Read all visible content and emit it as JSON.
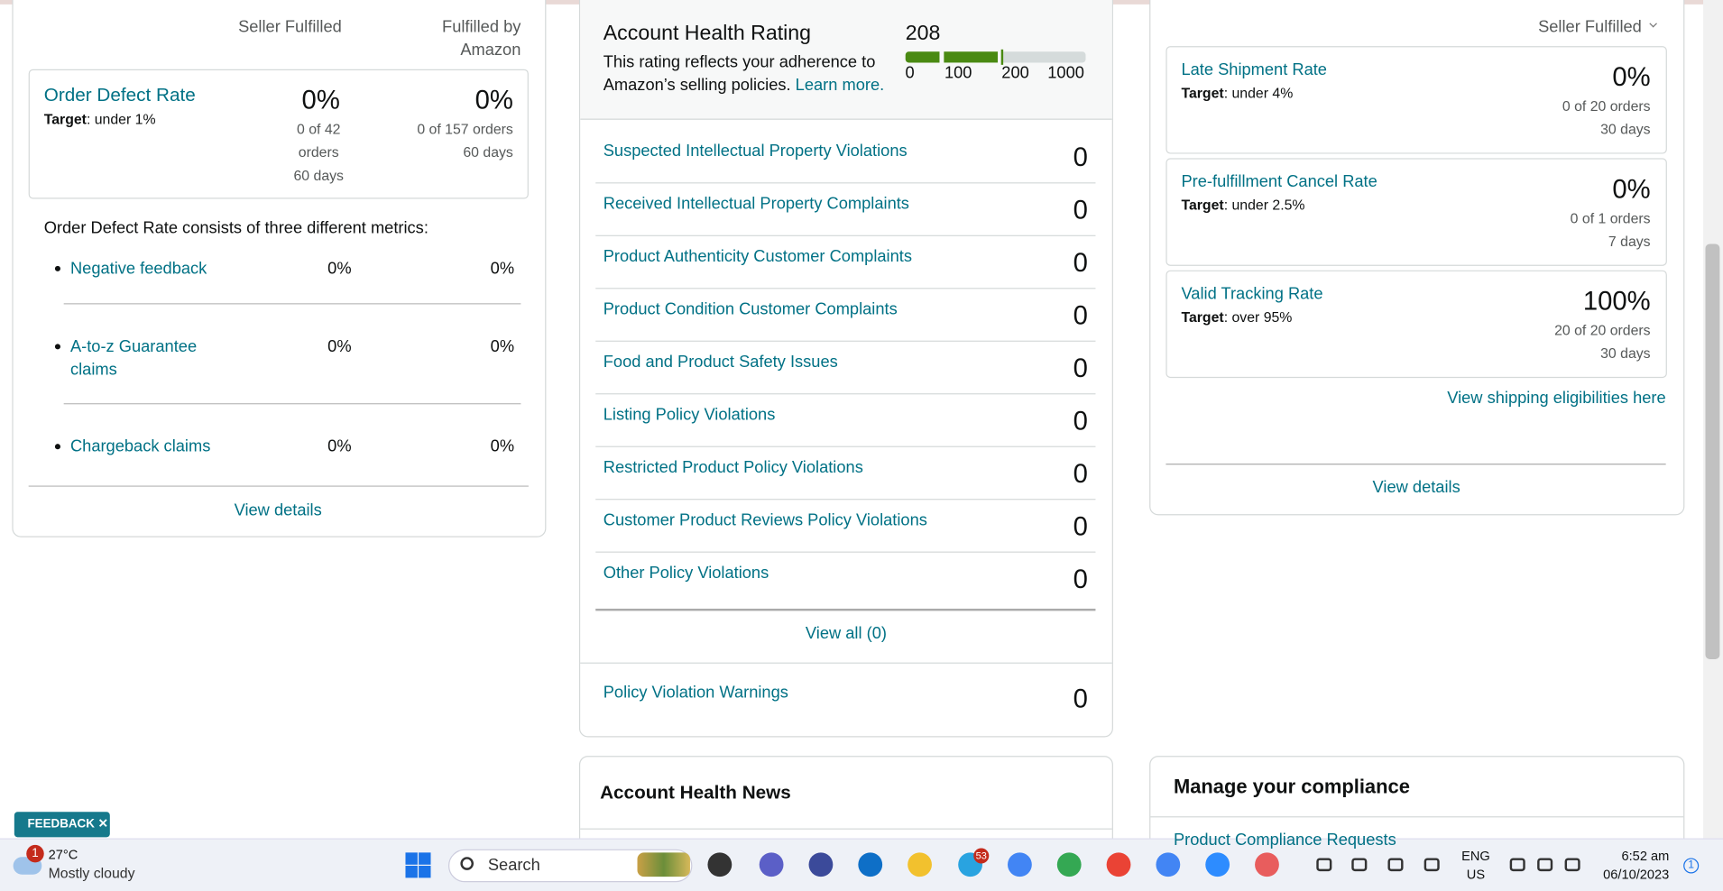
{
  "left": {
    "col_seller": "Seller Fulfilled",
    "col_amazon": "Fulfilled by Amazon",
    "odr": {
      "title": "Order Defect Rate",
      "target_label": "Target",
      "target": ": under 1%",
      "seller_value": "0%",
      "seller_detail": "0 of 42 orders",
      "seller_days": "60 days",
      "amazon_value": "0%",
      "amazon_detail": "0 of 157 orders",
      "amazon_days": "60 days"
    },
    "consists": "Order Defect Rate consists of three different metrics:",
    "metrics": [
      {
        "name": "Negative feedback",
        "seller": "0%",
        "amazon": "0%"
      },
      {
        "name": "A-to-z Guarantee claims",
        "seller": "0%",
        "amazon": "0%"
      },
      {
        "name": "Chargeback claims",
        "seller": "0%",
        "amazon": "0%"
      }
    ],
    "view_details": "View details"
  },
  "middle": {
    "title": "Account Health Rating",
    "score": "208",
    "description": "This rating reflects your adherence to Amazon’s selling policies.",
    "learn_more": "Learn more.",
    "scale": [
      "0",
      "100",
      "200",
      "1000"
    ],
    "violations": [
      {
        "name": "Suspected Intellectual Property Violations",
        "count": "0"
      },
      {
        "name": "Received Intellectual Property Complaints",
        "count": "0"
      },
      {
        "name": "Product Authenticity Customer Complaints",
        "count": "0"
      },
      {
        "name": "Product Condition Customer Complaints",
        "count": "0"
      },
      {
        "name": "Food and Product Safety Issues",
        "count": "0"
      },
      {
        "name": "Listing Policy Violations",
        "count": "0"
      },
      {
        "name": "Restricted Product Policy Violations",
        "count": "0"
      },
      {
        "name": "Customer Product Reviews Policy Violations",
        "count": "0"
      },
      {
        "name": "Other Policy Violations",
        "count": "0"
      }
    ],
    "view_all": "View all (0)",
    "warnings": {
      "name": "Policy Violation Warnings",
      "count": "0"
    },
    "news_title": "Account Health News"
  },
  "right": {
    "dropdown": "Seller Fulfilled",
    "metrics": [
      {
        "title": "Late Shipment Rate",
        "target_label": "Target",
        "target": ": under 4%",
        "value": "0%",
        "detail": "0 of 20 orders",
        "days": "30 days"
      },
      {
        "title": "Pre-fulfillment Cancel Rate",
        "target_label": "Target",
        "target": ": under 2.5%",
        "value": "0%",
        "detail": "0 of 1 orders",
        "days": "7 days"
      },
      {
        "title": "Valid Tracking Rate",
        "target_label": "Target",
        "target": ": over 95%",
        "value": "100%",
        "detail": "20 of 20 orders",
        "days": "30 days"
      }
    ],
    "shipping_link": "View shipping eligibilities here",
    "view_details": "View details",
    "compliance_title": "Manage your compliance",
    "compliance_item": "Product Compliance Requests"
  },
  "feedback": "FEEDBACK",
  "taskbar": {
    "weather_badge": "1",
    "temp": "27°C",
    "condition": "Mostly cloudy",
    "search": "Search",
    "telegram_badge": "53",
    "lang": "ENG",
    "region": "US",
    "time": "6:52 am",
    "date": "06/10/2023",
    "notif": "1"
  }
}
